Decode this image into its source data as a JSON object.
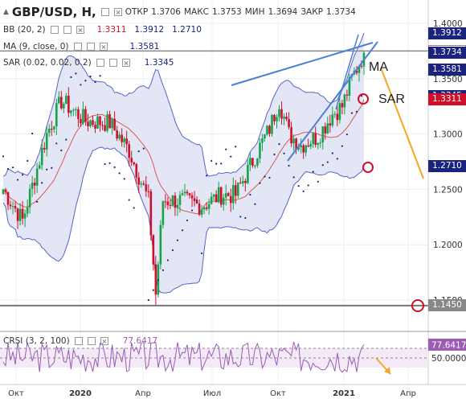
{
  "header": {
    "symbol": "GBP/USD, H,",
    "ohlc": {
      "open_label": "ОТКР",
      "open": "1.3706",
      "high_label": "МАКС",
      "high": "1.3753",
      "low_label": "МИН",
      "low": "1.3694",
      "close_label": "ЗАКР",
      "close": "1.3734"
    },
    "indicators": [
      {
        "label": "BB (20, 2)",
        "values": [
          "1.3311",
          "1.3912",
          "1.2710"
        ],
        "colors": [
          "#d0102a",
          "#1a237e",
          "#1a237e"
        ]
      },
      {
        "label": "MA (9, close, 0)",
        "values": [
          "1.3581"
        ],
        "colors": [
          "#1a237e"
        ]
      },
      {
        "label": "SAR (0.02, 0.02, 0.2)",
        "values": [
          "1.3345"
        ],
        "colors": [
          "#1a237e"
        ]
      }
    ]
  },
  "annotations": {
    "ma": "MA",
    "sar": "SAR"
  },
  "price_tags": [
    {
      "value": "1.3912",
      "bg": "#1a237e",
      "fg": "#ffffff",
      "price": 1.3912
    },
    {
      "value": "1.3750",
      "bg": "#ffffff",
      "fg": "#222222",
      "price": 1.375
    },
    {
      "value": "1.3734",
      "bg": "#1a237e",
      "fg": "#ffffff",
      "price": 1.3734
    },
    {
      "value": "1.3581",
      "bg": "#1a237e",
      "fg": "#ffffff",
      "price": 1.3581
    },
    {
      "value": "1.3345",
      "bg": "#1a237e",
      "fg": "#ffffff",
      "price": 1.3345
    },
    {
      "value": "1.3311",
      "bg": "#d0102a",
      "fg": "#ffffff",
      "price": 1.3311
    },
    {
      "value": "1.2710",
      "bg": "#1a237e",
      "fg": "#ffffff",
      "price": 1.271
    },
    {
      "value": "1.1450",
      "bg": "#888888",
      "fg": "#ffffff",
      "price": 1.145
    }
  ],
  "rsi": {
    "label": "CRSI (3, 2, 100)",
    "value": "77.6417",
    "axis_label": "50.0000"
  },
  "colors": {
    "up": "#17a34a",
    "down": "#d0102a",
    "band_fill": "#e3e6f5",
    "band_line": "#5a63c8",
    "ma_line": "#e05555",
    "sar": "#1a237e",
    "trend": "#4a7fd6",
    "arrow": "#f5a623",
    "circle": "#d0102a",
    "rsi_line": "#9c5cb4"
  },
  "chart_data": {
    "type": "candlestick",
    "symbol": "GBP/USD",
    "y_ticks": [
      1.4,
      1.35,
      1.3,
      1.25,
      1.2,
      1.15
    ],
    "y_tick_labels": [
      "1.4000",
      "1.3500",
      "1.3000",
      "1.2500",
      "1.2000",
      "1.1500"
    ],
    "x_tick_labels": [
      "Окт",
      "2020",
      "Апр",
      "Июл",
      "Окт",
      "2021",
      "Апр"
    ],
    "ylim": [
      1.135,
      1.41
    ],
    "horizontal_levels": [
      1.375,
      1.145
    ],
    "last_close": 1.3734,
    "bollinger_last": {
      "middle": 1.3311,
      "upper": 1.3912,
      "lower": 1.271
    },
    "ma_last": 1.3581,
    "sar_last": 1.3345,
    "crsi_last": 77.6417,
    "crsi_levels": [
      50,
      70
    ]
  }
}
